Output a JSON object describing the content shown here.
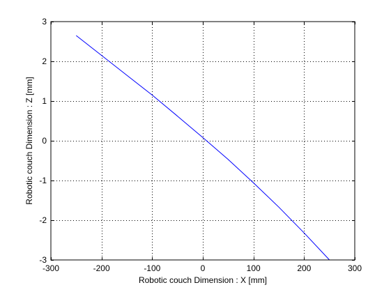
{
  "chart_data": {
    "type": "line",
    "xlabel": "Robotic couch Dimension : X [mm]",
    "ylabel": "Robotic couch Dimension : Z [mm]",
    "xlim": [
      -300,
      300
    ],
    "ylim": [
      -3,
      3
    ],
    "xticks": [
      -300,
      -200,
      -100,
      0,
      100,
      200,
      300
    ],
    "yticks": [
      -3,
      -2,
      -1,
      0,
      1,
      2,
      3
    ],
    "grid": true,
    "series": [
      {
        "color": "#0000ff",
        "x": [
          -250,
          -200,
          -150,
          -100,
          -50,
          0,
          50,
          100,
          150,
          200,
          250
        ],
        "y": [
          2.65,
          2.15,
          1.65,
          1.15,
          0.62,
          0.08,
          -0.47,
          -1.06,
          -1.67,
          -2.32,
          -3.0
        ]
      }
    ]
  }
}
